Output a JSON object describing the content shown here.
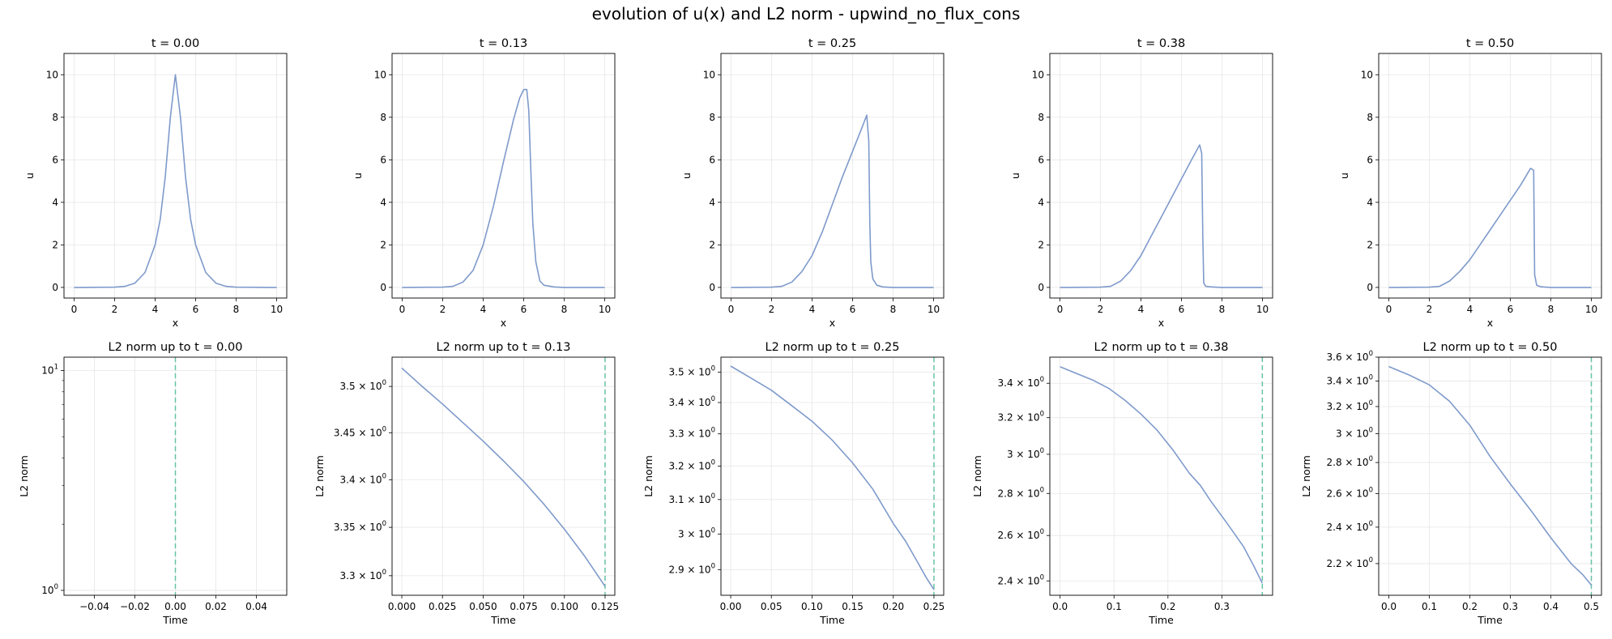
{
  "title": "evolution of u(x) and L2 norm - upwind_no_flux_cons",
  "colors": {
    "line": "#7F9ACB",
    "marker": "#66C2A5",
    "grid": "#E6E6E6"
  },
  "chart_data": [
    {
      "type": "line",
      "title": "t = 0.00",
      "xlabel": "x",
      "ylabel": "u",
      "xlim": [
        -0.5,
        10.5
      ],
      "ylim": [
        -0.5,
        11
      ],
      "xticks": [
        0,
        2,
        4,
        6,
        8,
        10
      ],
      "yticks": [
        0,
        2,
        4,
        6,
        8,
        10
      ],
      "series": [
        {
          "x": [
            0,
            2,
            2.5,
            3,
            3.5,
            4,
            4.25,
            4.5,
            4.75,
            5,
            5.25,
            5.5,
            5.75,
            6,
            6.5,
            7,
            7.5,
            8,
            10
          ],
          "y": [
            0,
            0.01,
            0.05,
            0.2,
            0.7,
            2.0,
            3.2,
            5.2,
            8.0,
            10.0,
            8.0,
            5.2,
            3.2,
            2.0,
            0.7,
            0.2,
            0.05,
            0.01,
            0
          ]
        }
      ],
      "grid": true
    },
    {
      "type": "line",
      "title": "t = 0.13",
      "xlabel": "x",
      "ylabel": "u",
      "xlim": [
        -0.5,
        10.5
      ],
      "ylim": [
        -0.5,
        11
      ],
      "xticks": [
        0,
        2,
        4,
        6,
        8,
        10
      ],
      "yticks": [
        0,
        2,
        4,
        6,
        8,
        10
      ],
      "series": [
        {
          "x": [
            0,
            2,
            2.5,
            3,
            3.5,
            4,
            4.5,
            5,
            5.5,
            5.8,
            6.0,
            6.15,
            6.25,
            6.35,
            6.45,
            6.6,
            6.8,
            7,
            7.5,
            8,
            10
          ],
          "y": [
            0,
            0.01,
            0.05,
            0.25,
            0.8,
            2.0,
            3.8,
            5.9,
            7.9,
            8.9,
            9.3,
            9.3,
            8.3,
            5.5,
            3.0,
            1.2,
            0.3,
            0.1,
            0.02,
            0,
            0
          ]
        }
      ],
      "grid": true
    },
    {
      "type": "line",
      "title": "t = 0.25",
      "xlabel": "x",
      "ylabel": "u",
      "xlim": [
        -0.5,
        10.5
      ],
      "ylim": [
        -0.5,
        11
      ],
      "xticks": [
        0,
        2,
        4,
        6,
        8,
        10
      ],
      "yticks": [
        0,
        2,
        4,
        6,
        8,
        10
      ],
      "series": [
        {
          "x": [
            0,
            2,
            2.5,
            3,
            3.5,
            4,
            4.5,
            5,
            5.5,
            6,
            6.5,
            6.7,
            6.8,
            6.85,
            6.9,
            7.0,
            7.2,
            7.5,
            8,
            10
          ],
          "y": [
            0,
            0.01,
            0.05,
            0.25,
            0.75,
            1.5,
            2.6,
            3.9,
            5.2,
            6.4,
            7.6,
            8.1,
            6.9,
            3.0,
            1.2,
            0.4,
            0.1,
            0.02,
            0,
            0
          ]
        }
      ],
      "grid": true
    },
    {
      "type": "line",
      "title": "t = 0.38",
      "xlabel": "x",
      "ylabel": "u",
      "xlim": [
        -0.5,
        10.5
      ],
      "ylim": [
        -0.5,
        11
      ],
      "xticks": [
        0,
        2,
        4,
        6,
        8,
        10
      ],
      "yticks": [
        0,
        2,
        4,
        6,
        8,
        10
      ],
      "series": [
        {
          "x": [
            0,
            2,
            2.5,
            3,
            3.5,
            4,
            4.5,
            5,
            5.5,
            6,
            6.5,
            6.9,
            7.0,
            7.05,
            7.1,
            7.2,
            7.5,
            8,
            10
          ],
          "y": [
            0,
            0.01,
            0.05,
            0.3,
            0.8,
            1.5,
            2.4,
            3.3,
            4.2,
            5.1,
            6.0,
            6.7,
            6.3,
            2.5,
            0.2,
            0.05,
            0.02,
            0,
            0
          ]
        }
      ],
      "grid": true
    },
    {
      "type": "line",
      "title": "t = 0.50",
      "xlabel": "x",
      "ylabel": "u",
      "xlim": [
        -0.5,
        10.5
      ],
      "ylim": [
        -0.5,
        11
      ],
      "xticks": [
        0,
        2,
        4,
        6,
        8,
        10
      ],
      "yticks": [
        0,
        2,
        4,
        6,
        8,
        10
      ],
      "series": [
        {
          "x": [
            0,
            2,
            2.5,
            3,
            3.5,
            4,
            4.5,
            5,
            5.5,
            6,
            6.5,
            7.0,
            7.15,
            7.2,
            7.3,
            7.5,
            8,
            10
          ],
          "y": [
            0,
            0.01,
            0.05,
            0.3,
            0.75,
            1.3,
            2.0,
            2.7,
            3.4,
            4.1,
            4.8,
            5.6,
            5.5,
            0.6,
            0.1,
            0.03,
            0,
            0
          ]
        }
      ],
      "grid": true
    },
    {
      "type": "line",
      "yscale": "log",
      "title": "L2 norm up to t = 0.00",
      "xlabel": "Time",
      "ylabel": "L2 norm",
      "xlim": [
        -0.055,
        0.055
      ],
      "ylim": [
        0.95,
        11.5
      ],
      "xticks": [
        -0.04,
        -0.02,
        0.0,
        0.02,
        0.04
      ],
      "xticklabels": [
        "−0.04",
        "−0.02",
        "0.00",
        "0.02",
        "0.04"
      ],
      "yticks": [
        1,
        10
      ],
      "yticklabels": [
        [
          "10",
          "0"
        ],
        [
          "10",
          "1"
        ]
      ],
      "minor_yticks": [
        2,
        3,
        4,
        5,
        6,
        7,
        8,
        9
      ],
      "series": [
        {
          "x": [],
          "y": []
        }
      ],
      "current_time": 0.0,
      "grid": true
    },
    {
      "type": "line",
      "yscale": "log",
      "title": "L2 norm up to t = 0.13",
      "xlabel": "Time",
      "ylabel": "L2 norm",
      "xlim": [
        -0.006,
        0.131
      ],
      "ylim": [
        3.28,
        3.532
      ],
      "xticks": [
        0.0,
        0.025,
        0.05,
        0.075,
        0.1,
        0.125
      ],
      "xticklabels": [
        "0.000",
        "0.025",
        "0.050",
        "0.075",
        "0.100",
        "0.125"
      ],
      "yticks": [
        3.3,
        3.35,
        3.4,
        3.45,
        3.5
      ],
      "yticklabels": [
        [
          "3.3 × 10",
          "0"
        ],
        [
          "3.35 × 10",
          "0"
        ],
        [
          "3.4 × 10",
          "0"
        ],
        [
          "3.45 × 10",
          "0"
        ],
        [
          "3.5 × 10",
          "0"
        ]
      ],
      "series": [
        {
          "x": [
            0,
            0.0125,
            0.025,
            0.0375,
            0.05,
            0.0625,
            0.075,
            0.0875,
            0.1,
            0.1125,
            0.125
          ],
          "y": [
            3.52,
            3.5,
            3.481,
            3.461,
            3.441,
            3.42,
            3.398,
            3.374,
            3.348,
            3.32,
            3.289
          ]
        }
      ],
      "current_time": 0.125,
      "grid": true
    },
    {
      "type": "line",
      "yscale": "log",
      "title": "L2 norm up to t = 0.25",
      "xlabel": "Time",
      "ylabel": "L2 norm",
      "xlim": [
        -0.012,
        0.262
      ],
      "ylim": [
        2.83,
        3.55
      ],
      "xticks": [
        0.0,
        0.05,
        0.1,
        0.15,
        0.2,
        0.25
      ],
      "xticklabels": [
        "0.00",
        "0.05",
        "0.10",
        "0.15",
        "0.20",
        "0.25"
      ],
      "yticks": [
        2.9,
        3.0,
        3.1,
        3.2,
        3.3,
        3.4,
        3.5
      ],
      "yticklabels": [
        [
          "2.9 × 10",
          "0"
        ],
        [
          "3 × 10",
          "0"
        ],
        [
          "3.1 × 10",
          "0"
        ],
        [
          "3.2 × 10",
          "0"
        ],
        [
          "3.3 × 10",
          "0"
        ],
        [
          "3.4 × 10",
          "0"
        ],
        [
          "3.5 × 10",
          "0"
        ]
      ],
      "series": [
        {
          "x": [
            0,
            0.025,
            0.05,
            0.075,
            0.1,
            0.125,
            0.15,
            0.175,
            0.2,
            0.215,
            0.23,
            0.24,
            0.25
          ],
          "y": [
            3.52,
            3.48,
            3.44,
            3.39,
            3.34,
            3.28,
            3.21,
            3.13,
            3.03,
            2.98,
            2.92,
            2.88,
            2.845
          ]
        }
      ],
      "current_time": 0.25,
      "grid": true
    },
    {
      "type": "line",
      "yscale": "log",
      "title": "L2 norm up to t = 0.38",
      "xlabel": "Time",
      "ylabel": "L2 norm",
      "xlim": [
        -0.019,
        0.394
      ],
      "ylim": [
        2.34,
        3.56
      ],
      "xticks": [
        0.0,
        0.1,
        0.2,
        0.3
      ],
      "xticklabels": [
        "0.0",
        "0.1",
        "0.2",
        "0.3"
      ],
      "yticks": [
        2.4,
        2.6,
        2.8,
        3.0,
        3.2,
        3.4
      ],
      "yticklabels": [
        [
          "2.4 × 10",
          "0"
        ],
        [
          "2.6 × 10",
          "0"
        ],
        [
          "2.8 × 10",
          "0"
        ],
        [
          "3 × 10",
          "0"
        ],
        [
          "3.2 × 10",
          "0"
        ],
        [
          "3.4 × 10",
          "0"
        ]
      ],
      "series": [
        {
          "x": [
            0,
            0.03,
            0.06,
            0.09,
            0.12,
            0.15,
            0.18,
            0.21,
            0.24,
            0.26,
            0.28,
            0.3,
            0.32,
            0.34,
            0.36,
            0.375
          ],
          "y": [
            3.5,
            3.46,
            3.42,
            3.37,
            3.3,
            3.22,
            3.13,
            3.02,
            2.9,
            2.84,
            2.76,
            2.69,
            2.62,
            2.55,
            2.46,
            2.39
          ]
        }
      ],
      "current_time": 0.375,
      "grid": true
    },
    {
      "type": "line",
      "yscale": "log",
      "title": "L2 norm up to t = 0.50",
      "xlabel": "Time",
      "ylabel": "L2 norm",
      "xlim": [
        -0.025,
        0.525
      ],
      "ylim": [
        2.04,
        3.6
      ],
      "xticks": [
        0.0,
        0.1,
        0.2,
        0.3,
        0.4,
        0.5
      ],
      "xticklabels": [
        "0.0",
        "0.1",
        "0.2",
        "0.3",
        "0.4",
        "0.5"
      ],
      "yticks": [
        2.2,
        2.4,
        2.6,
        2.8,
        3.0,
        3.2,
        3.4,
        3.6
      ],
      "yticklabels": [
        [
          "2.2 × 10",
          "0"
        ],
        [
          "2.4 × 10",
          "0"
        ],
        [
          "2.6 × 10",
          "0"
        ],
        [
          "2.8 × 10",
          "0"
        ],
        [
          "3 × 10",
          "0"
        ],
        [
          "3.2 × 10",
          "0"
        ],
        [
          "3.4 × 10",
          "0"
        ],
        [
          "3.6 × 10",
          "0"
        ]
      ],
      "series": [
        {
          "x": [
            0,
            0.05,
            0.1,
            0.15,
            0.2,
            0.25,
            0.3,
            0.35,
            0.4,
            0.45,
            0.48,
            0.5
          ],
          "y": [
            3.52,
            3.45,
            3.37,
            3.24,
            3.06,
            2.84,
            2.66,
            2.5,
            2.34,
            2.2,
            2.14,
            2.09
          ]
        }
      ],
      "current_time": 0.5,
      "grid": true
    }
  ]
}
